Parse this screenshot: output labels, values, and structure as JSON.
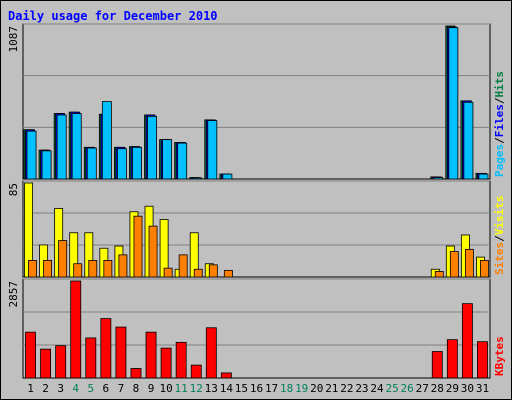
{
  "chart_data": {
    "type": "bar",
    "title": "Daily usage for December 2010",
    "days": [
      "1",
      "2",
      "3",
      "4",
      "5",
      "6",
      "7",
      "8",
      "9",
      "10",
      "11",
      "12",
      "13",
      "14",
      "15",
      "16",
      "17",
      "18",
      "19",
      "20",
      "21",
      "22",
      "23",
      "24",
      "25",
      "26",
      "27",
      "28",
      "29",
      "30",
      "31"
    ],
    "weekend_days": [
      "4",
      "5",
      "11",
      "12",
      "18",
      "19",
      "25",
      "26"
    ],
    "panels": [
      {
        "name": "hits-files-pages",
        "ymax_label": "1087",
        "ymax": 1087,
        "legend": [
          "Pages",
          "/",
          "Files",
          "/",
          "Hits"
        ],
        "series": [
          {
            "name": "Hits",
            "color": "#008040",
            "values": [
              350,
              205,
              465,
              475,
              225,
              460,
              225,
              230,
              455,
              280,
              260,
              10,
              420,
              35,
              0,
              0,
              0,
              0,
              0,
              0,
              0,
              0,
              0,
              0,
              0,
              0,
              0,
              15,
              1087,
              555,
              40
            ]
          },
          {
            "name": "Files",
            "color": "#0000ff",
            "values": [
              350,
              205,
              465,
              475,
              225,
              460,
              225,
              230,
              455,
              280,
              260,
              10,
              420,
              35,
              0,
              0,
              0,
              0,
              0,
              0,
              0,
              0,
              0,
              0,
              0,
              0,
              0,
              15,
              1080,
              555,
              40
            ]
          },
          {
            "name": "Pages",
            "color": "#00c0ff",
            "values": [
              340,
              200,
              455,
              465,
              220,
              550,
              215,
              225,
              445,
              280,
              255,
              8,
              415,
              35,
              0,
              0,
              0,
              0,
              0,
              0,
              0,
              0,
              0,
              0,
              0,
              0,
              0,
              10,
              1075,
              545,
              35
            ]
          }
        ]
      },
      {
        "name": "visits-sites",
        "ymax_label": "85",
        "ymax": 85,
        "legend": [
          "Sites",
          "/",
          "Visits"
        ],
        "series": [
          {
            "name": "Visits",
            "color": "#ffff00",
            "values": [
              85,
              29,
              62,
              40,
              40,
              26,
              28,
              59,
              64,
              52,
              7,
              40,
              12,
              0,
              0,
              0,
              0,
              0,
              0,
              0,
              0,
              0,
              0,
              0,
              0,
              0,
              0,
              7,
              28,
              38,
              18
            ]
          },
          {
            "name": "Sites",
            "color": "#ff8000",
            "values": [
              15,
              15,
              33,
              12,
              15,
              15,
              20,
              55,
              46,
              8,
              20,
              7,
              11,
              6,
              0,
              0,
              0,
              0,
              0,
              0,
              0,
              0,
              0,
              0,
              0,
              0,
              0,
              5,
              23,
              25,
              15
            ]
          }
        ]
      },
      {
        "name": "kbytes",
        "ymax_label": "2857",
        "ymax": 2857,
        "legend": [
          "KBytes"
        ],
        "series": [
          {
            "name": "KBytes",
            "color": "#ff0000",
            "values": [
              1350,
              850,
              950,
              2857,
              1180,
              1750,
              1500,
              280,
              1350,
              880,
              1050,
              380,
              1480,
              150,
              0,
              0,
              0,
              0,
              0,
              0,
              0,
              0,
              0,
              0,
              0,
              0,
              0,
              780,
              1130,
              2190,
              1070
            ]
          }
        ]
      }
    ]
  }
}
